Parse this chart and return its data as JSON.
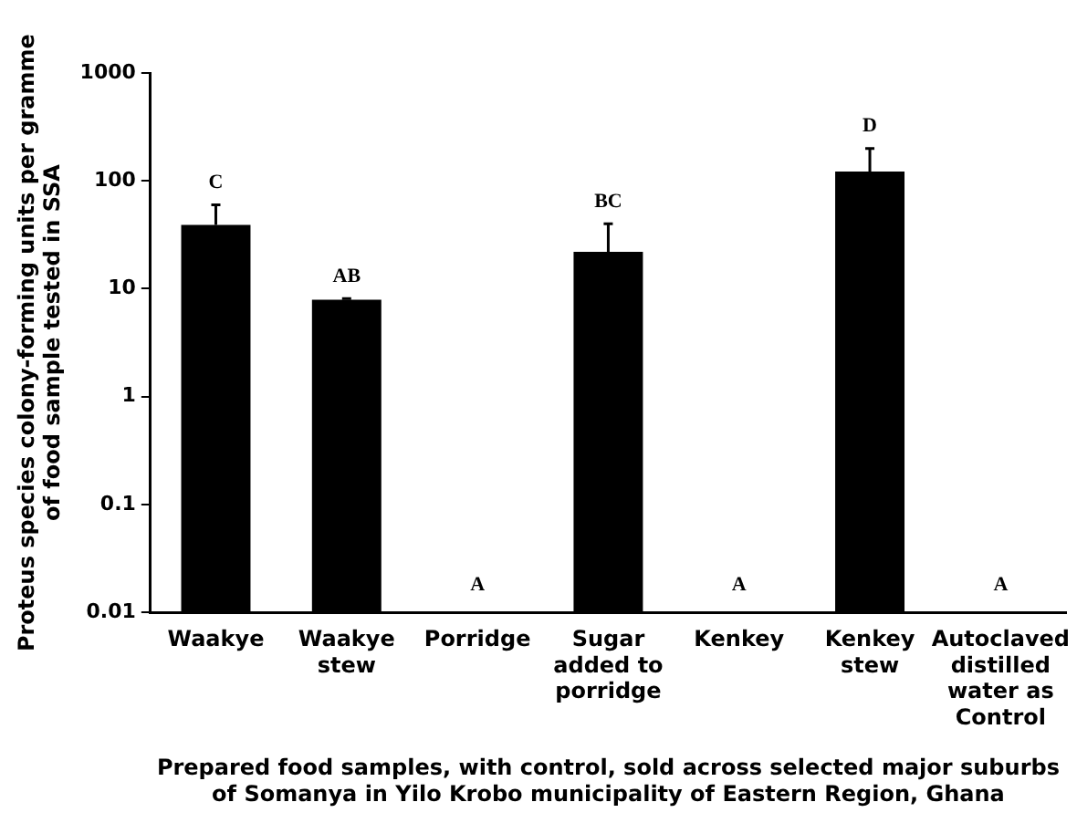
{
  "chart_data": {
    "type": "bar",
    "xlabel": "Prepared food samples, with control, sold across selected major suburbs of Somanya in Yilo Krobo municipality of Eastern Region, Ghana",
    "ylabel": "Proteus species colony-forming units per gramme of food sample tested in SSA",
    "categories": [
      "Waakye",
      "Waakye stew",
      "Porridge",
      "Sugar added to porridge",
      "Kenkey",
      "Kenkey stew",
      "Autoclaved distilled water as Control"
    ],
    "values": [
      39,
      7.9,
      null,
      22,
      null,
      122,
      null
    ],
    "color": "#000000",
    "errors": [
      [
        39,
        60
      ],
      [
        7.9,
        8.1
      ],
      null,
      [
        22,
        40
      ],
      null,
      [
        122,
        200
      ],
      null
    ],
    "log": true,
    "ylim": [
      0.01,
      1000
    ],
    "yticks": [
      0.01,
      0.1,
      1,
      10,
      100,
      1000
    ],
    "grid": false,
    "legend": false,
    "annotations": [
      "C",
      "AB",
      "A",
      "BC",
      "A",
      "D",
      "A"
    ]
  }
}
